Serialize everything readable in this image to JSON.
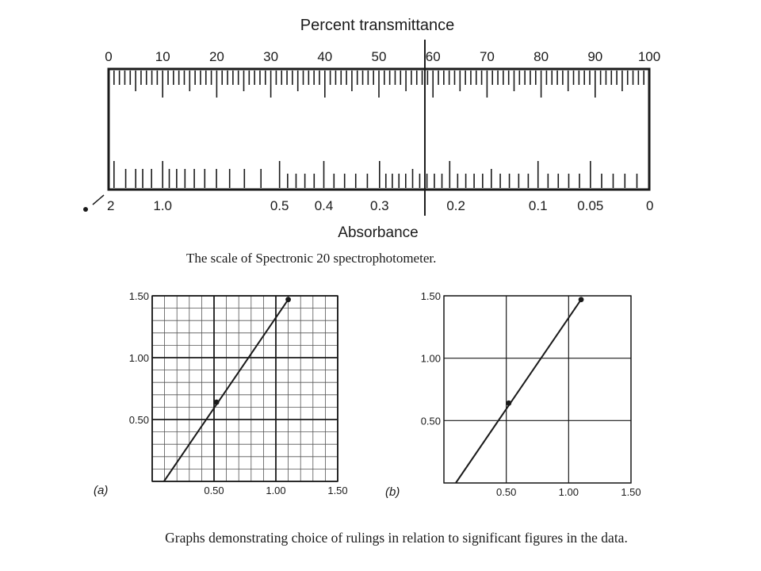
{
  "scale": {
    "title": "Percent transmittance",
    "bottom_label": "Absorbance",
    "transmittance_labels": [
      "0",
      "10",
      "20",
      "30",
      "40",
      "50",
      "60",
      "70",
      "80",
      "90",
      "100"
    ],
    "absorbance_labels": [
      {
        "text": "2",
        "value": 2.0
      },
      {
        "text": "1.0",
        "value": 1.0
      },
      {
        "text": "0.5",
        "value": 0.5
      },
      {
        "text": "0.4",
        "value": 0.4
      },
      {
        "text": "0.3",
        "value": 0.3
      },
      {
        "text": "0.2",
        "value": 0.2
      },
      {
        "text": "0.1",
        "value": 0.1
      },
      {
        "text": "0.05",
        "value": 0.05
      },
      {
        "text": "0",
        "value": 0
      }
    ],
    "pointer_transmittance": 58.5,
    "caption": "The scale of Spectronic 20 spectrophotometer."
  },
  "graph_a": {
    "panel_label": "(a)",
    "x_ticks": [
      "0.50",
      "1.00",
      "1.50"
    ],
    "y_ticks": [
      "0.50",
      "1.00",
      "1.50"
    ],
    "x_range": [
      0,
      1.5
    ],
    "y_range": [
      0,
      1.5
    ],
    "minor_step": 0.1,
    "major_step": 0.5,
    "points": [
      {
        "x": 0.52,
        "y": 0.64
      },
      {
        "x": 1.1,
        "y": 1.47
      }
    ],
    "line": {
      "x0": 0.095,
      "y0": 0.0,
      "x1": 1.1,
      "y1": 1.47
    }
  },
  "graph_b": {
    "panel_label": "(b)",
    "x_ticks": [
      "0.50",
      "1.00",
      "1.50"
    ],
    "y_ticks": [
      "0.50",
      "1.00",
      "1.50"
    ],
    "x_range": [
      0,
      1.5
    ],
    "y_range": [
      0,
      1.5
    ],
    "major_step": 0.5,
    "points": [
      {
        "x": 0.52,
        "y": 0.64
      },
      {
        "x": 1.1,
        "y": 1.47
      }
    ],
    "line": {
      "x0": 0.095,
      "y0": 0.0,
      "x1": 1.1,
      "y1": 1.47
    }
  },
  "bottom_caption": "Graphs demonstrating choice of rulings in relation to significant figures in the data."
}
